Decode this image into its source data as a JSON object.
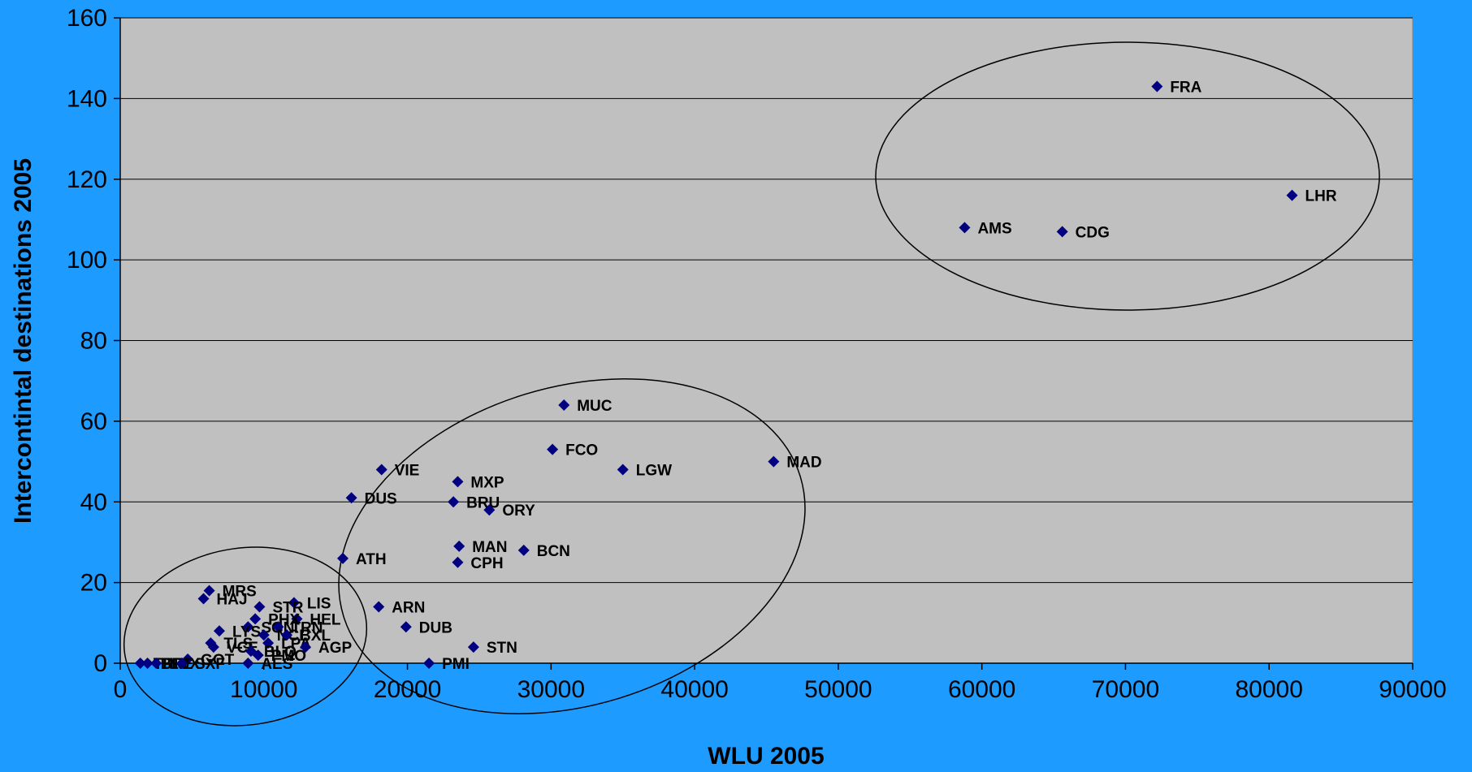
{
  "chart_data": {
    "type": "scatter",
    "title": "",
    "xlabel": "WLU 2005",
    "ylabel": "Intercontintal destinations 2005",
    "xlim": [
      0,
      90000
    ],
    "ylim": [
      0,
      160
    ],
    "x_ticks": [
      0,
      10000,
      20000,
      30000,
      40000,
      50000,
      60000,
      70000,
      80000,
      90000
    ],
    "y_ticks": [
      0,
      20,
      40,
      60,
      80,
      100,
      120,
      140,
      160
    ],
    "grid": "horizontal",
    "colors": {
      "background": "#1E9BFF",
      "plot_area": "#C0C0C0",
      "marker": "#000080"
    },
    "series": [
      {
        "points": [
          {
            "label": "FRA",
            "x": 72200,
            "y": 143
          },
          {
            "label": "LHR",
            "x": 81600,
            "y": 116
          },
          {
            "label": "AMS",
            "x": 58800,
            "y": 108
          },
          {
            "label": "CDG",
            "x": 65600,
            "y": 107
          },
          {
            "label": "MUC",
            "x": 30900,
            "y": 64
          },
          {
            "label": "FCO",
            "x": 30100,
            "y": 53
          },
          {
            "label": "MAD",
            "x": 45500,
            "y": 50
          },
          {
            "label": "LGW",
            "x": 35000,
            "y": 48
          },
          {
            "label": "VIE",
            "x": 18200,
            "y": 48
          },
          {
            "label": "MXP",
            "x": 23500,
            "y": 45
          },
          {
            "label": "DUS",
            "x": 16100,
            "y": 41
          },
          {
            "label": "BRU",
            "x": 23200,
            "y": 40
          },
          {
            "label": "ORY",
            "x": 25700,
            "y": 38
          },
          {
            "label": "MAN",
            "x": 23600,
            "y": 29
          },
          {
            "label": "BCN",
            "x": 28100,
            "y": 28
          },
          {
            "label": "ATH",
            "x": 15500,
            "y": 26
          },
          {
            "label": "CPH",
            "x": 23500,
            "y": 25
          },
          {
            "label": "MRS",
            "x": 6200,
            "y": 18
          },
          {
            "label": "HAJ",
            "x": 5800,
            "y": 16
          },
          {
            "label": "LIS",
            "x": 12100,
            "y": 15
          },
          {
            "label": "ARN",
            "x": 18000,
            "y": 14
          },
          {
            "label": "STR",
            "x": 9700,
            "y": 14
          },
          {
            "label": "HEL",
            "x": 12300,
            "y": 11
          },
          {
            "label": "PHX",
            "x": 9400,
            "y": 11
          },
          {
            "label": "DUB",
            "x": 19900,
            "y": 9
          },
          {
            "label": "SGN",
            "x": 8900,
            "y": 9
          },
          {
            "label": "TRN",
            "x": 11000,
            "y": 9
          },
          {
            "label": "LYS",
            "x": 6900,
            "y": 8
          },
          {
            "label": "NCE",
            "x": 10000,
            "y": 7
          },
          {
            "label": "BXL",
            "x": 11600,
            "y": 7
          },
          {
            "label": "TLS",
            "x": 6300,
            "y": 5
          },
          {
            "label": "LPA",
            "x": 10300,
            "y": 5
          },
          {
            "label": "AGP",
            "x": 12900,
            "y": 4
          },
          {
            "label": "STN",
            "x": 24600,
            "y": 4
          },
          {
            "label": "VCE",
            "x": 6500,
            "y": 4
          },
          {
            "label": "BLQ",
            "x": 9100,
            "y": 3
          },
          {
            "label": "PMO",
            "x": 9600,
            "y": 2
          },
          {
            "label": "GOT",
            "x": 4700,
            "y": 1
          },
          {
            "label": "AES",
            "x": 8900,
            "y": 0
          },
          {
            "label": "PMI",
            "x": 21500,
            "y": 0
          },
          {
            "label": "TRF",
            "x": 1400,
            "y": 0
          },
          {
            "label": "BRE",
            "x": 1900,
            "y": 0
          },
          {
            "label": "LUX",
            "x": 2500,
            "y": 0
          },
          {
            "label": "SXF",
            "x": 4300,
            "y": 0
          }
        ]
      }
    ]
  }
}
